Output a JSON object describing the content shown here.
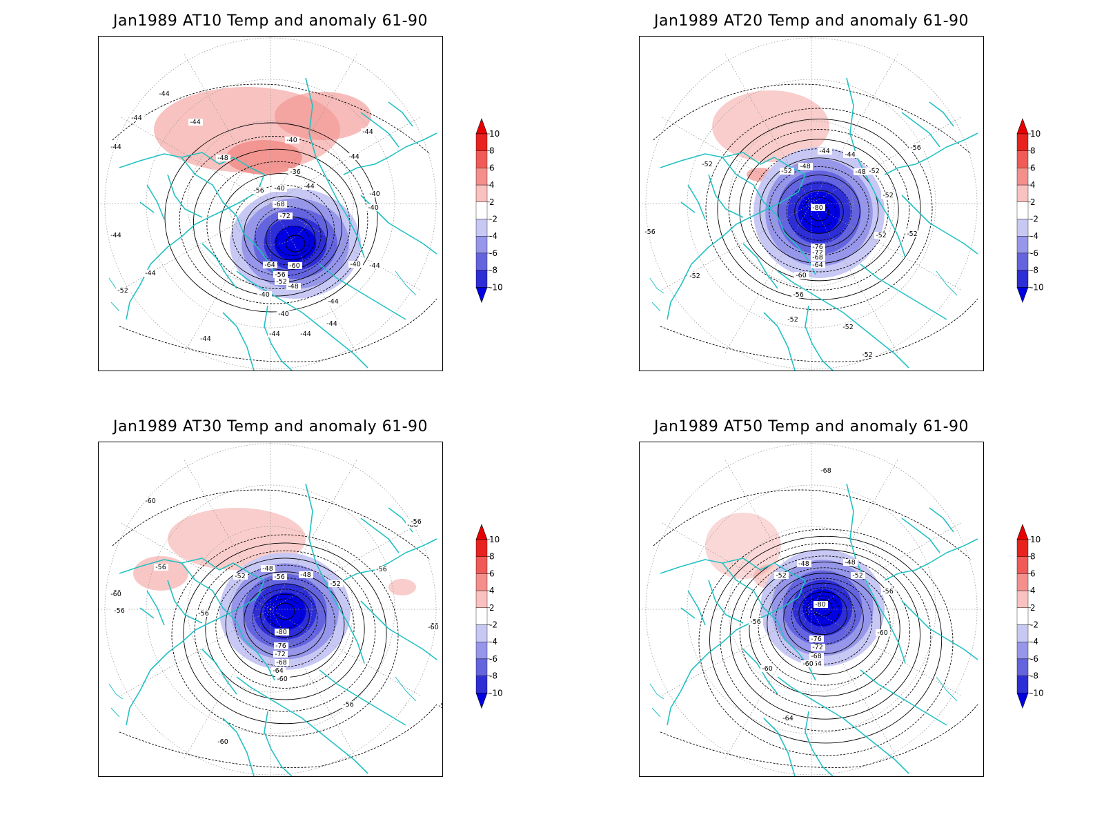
{
  "panels": [
    {
      "title": "Jan1989 AT10 Temp and anomaly 61-90",
      "contour_labels": [
        "-44",
        "-44",
        "-44",
        "-44",
        "-44",
        "-40",
        "-48",
        "-36",
        "-40",
        "-56",
        "-68",
        "-72",
        "-64",
        "-60",
        "-56",
        "-52",
        "-48",
        "-44",
        "-40",
        "-40",
        "-44",
        "-44",
        "-44",
        "-40",
        "-40",
        "-44",
        "-44",
        "-44",
        "-52",
        "-44",
        "-44",
        "-40",
        "-44"
      ]
    },
    {
      "title": "Jan1989 AT20 Temp and anomaly 61-90",
      "contour_labels": [
        "-52",
        "-44",
        "-44",
        "-52",
        "-52",
        "-48",
        "-48",
        "-52",
        "-80",
        "-76",
        "-72",
        "-68",
        "-64",
        "-60",
        "-56",
        "-52",
        "-52",
        "-52",
        "-56",
        "-52",
        "-56",
        "-52",
        "-52"
      ]
    },
    {
      "title": "Jan1989 AT30 Temp and anomaly 61-90",
      "contour_labels": [
        "-60",
        "-60",
        "-60",
        "-56",
        "-52",
        "-48",
        "-56",
        "-48",
        "-52",
        "-56",
        "-56",
        "-60",
        "-56",
        "-56",
        "-80",
        "-76",
        "-72",
        "-68",
        "-64",
        "-60",
        "-56",
        "-60",
        "-56",
        "-60",
        "-60"
      ]
    },
    {
      "title": "Jan1989 AT50 Temp and anomaly 61-90",
      "contour_labels": [
        "-68",
        "-52",
        "-48",
        "-48",
        "-52",
        "-56",
        "-56",
        "-80",
        "-76",
        "-72",
        "-68",
        "-64",
        "-60",
        "-60",
        "-60",
        "-64"
      ]
    }
  ],
  "colorbar": {
    "labels": [
      "10",
      "8",
      "6",
      "4",
      "2",
      "-2",
      "-4",
      "-6",
      "-8",
      "-10"
    ],
    "colors": [
      "#e8231f",
      "#f05a57",
      "#f58f8c",
      "#f9c1bf",
      "#ffffff",
      "#c8c8f5",
      "#9696ea",
      "#6464df",
      "#2e2ed6"
    ],
    "over_color": "#e80000",
    "under_color": "#0000e0"
  },
  "map_colors": {
    "coast": "#22c1c3",
    "contour": "#000000",
    "grid": "#9a9a9a"
  }
}
